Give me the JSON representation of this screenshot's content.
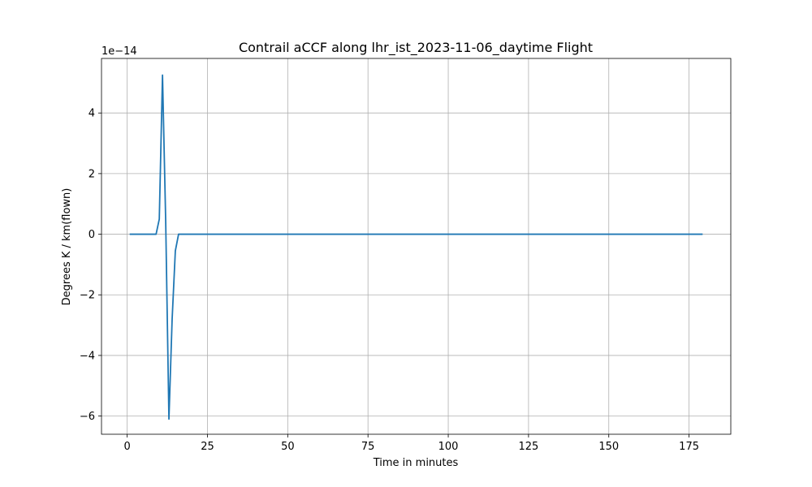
{
  "chart_data": {
    "type": "line",
    "title": "Contrail aCCF along lhr_ist_2023-11-06_daytime Flight",
    "xlabel": "Time in minutes",
    "ylabel": "Degrees K / km(flown)",
    "offset_text": "1e−14",
    "xlim": [
      -8,
      188
    ],
    "ylim": [
      -6.6,
      5.8
    ],
    "grid": true,
    "x_ticks": [
      0,
      25,
      50,
      75,
      100,
      125,
      150,
      175
    ],
    "x_tick_labels": [
      "0",
      "25",
      "50",
      "75",
      "100",
      "125",
      "150",
      "175"
    ],
    "y_ticks": [
      -6,
      -4,
      -2,
      0,
      2,
      4
    ],
    "y_tick_labels": [
      "−6",
      "−4",
      "−2",
      "0",
      "2",
      "4"
    ],
    "series": [
      {
        "color": "#1f77b4",
        "x": [
          1,
          9,
          10,
          11,
          12,
          13,
          14,
          15,
          16,
          179
        ],
        "y": [
          0,
          0,
          0.5,
          5.25,
          0.4,
          -6.1,
          -2.8,
          -0.55,
          0,
          0
        ]
      }
    ]
  }
}
